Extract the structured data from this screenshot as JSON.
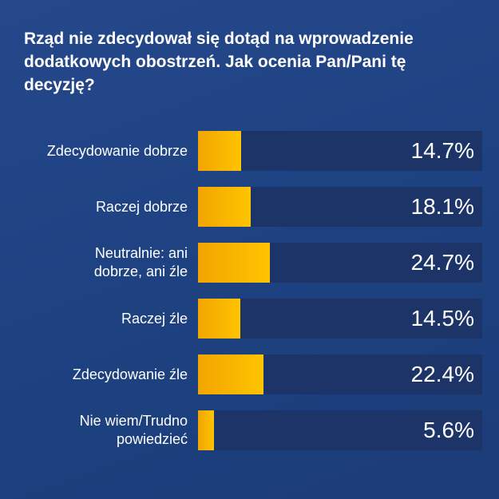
{
  "chart_data": {
    "type": "bar",
    "orientation": "horizontal",
    "title": "Rząd nie zdecydował się dotąd na wprowadzenie dodatkowych obostrzeń. Jak ocenia Pan/Pani tę decyzję?",
    "categories": [
      "Zdecydowanie dobrze",
      "Raczej dobrze",
      "Neutralnie: ani dobrze, ani źle",
      "Raczej źle",
      "Zdecydowanie źle",
      "Nie wiem/Trudno powiedzieć"
    ],
    "values": [
      14.7,
      18.1,
      24.7,
      14.5,
      22.4,
      5.6
    ],
    "value_labels": [
      "14.7%",
      "18.1%",
      "24.7%",
      "14.5%",
      "22.4%",
      "5.6%"
    ],
    "color": "#ffc400"
  }
}
